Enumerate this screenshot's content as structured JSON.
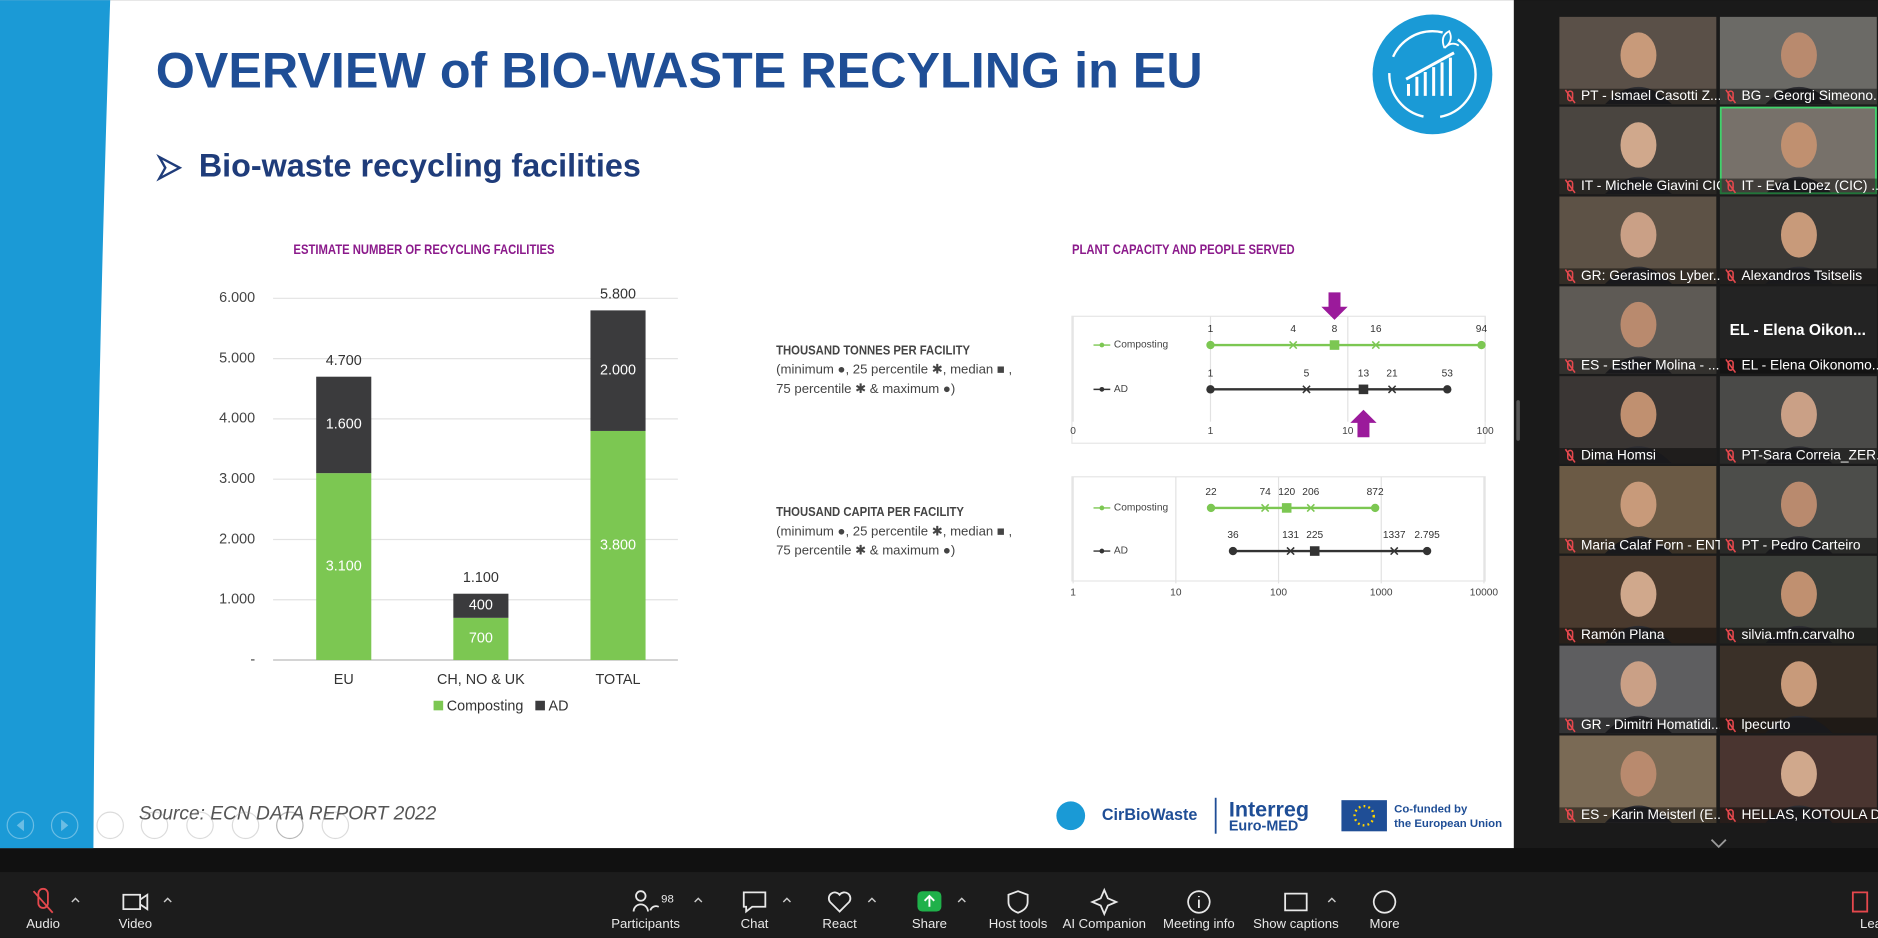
{
  "slide": {
    "title": "OVERVIEW of BIO-WASTE RECYLING in EU",
    "subtitle": "Bio-waste recycling facilities",
    "source": "Source: ECN DATA REPORT 2022",
    "logos": {
      "project": "CirBioWaste",
      "programme": "Interreg",
      "programme_region": "Euro-MED",
      "funding_line1": "Co-funded by",
      "funding_line2": "the European Union"
    },
    "charts": [
      {
        "type": "bar",
        "stacked": true,
        "title": "ESTIMATE NUMBER OF RECYCLING FACILITIES",
        "categories": [
          "EU",
          "CH, NO & UK",
          "TOTAL"
        ],
        "series": [
          {
            "name": "Composting",
            "color": "#7cc752",
            "values": [
              3100,
              700,
              3800
            ],
            "value_labels": [
              "3.100",
              "700",
              "3.800"
            ]
          },
          {
            "name": "AD",
            "color": "#3b3b3d",
            "values": [
              1600,
              400,
              2000
            ],
            "value_labels": [
              "1.600",
              "400",
              "2.000"
            ]
          }
        ],
        "totals": {
          "values": [
            4700,
            1100,
            5800
          ],
          "value_labels": [
            "4.700",
            "1.100",
            "5.800"
          ]
        },
        "ylim": [
          0,
          6000
        ],
        "yticks": [
          {
            "value": 0,
            "label": "-"
          },
          {
            "value": 1000,
            "label": "1.000"
          },
          {
            "value": 2000,
            "label": "2.000"
          },
          {
            "value": 3000,
            "label": "3.000"
          },
          {
            "value": 4000,
            "label": "4.000"
          },
          {
            "value": 5000,
            "label": "5.000"
          },
          {
            "value": 6000,
            "label": "6.000"
          }
        ],
        "grid": true,
        "legend": "bottom"
      },
      {
        "type": "dot-range",
        "title": "PLANT CAPACITY  AND PEOPLE SERVED",
        "panels": [
          {
            "label": "THOUSAND TONNES PER FACILITY",
            "description": [
              "(minimum ●, 25 percentile ✱, median ■ ,",
              "75 percentile ✱ & maximum ●)"
            ],
            "log_scale": true,
            "xlim": [
              0.1,
              100
            ],
            "xticks": [
              {
                "value": 0.1,
                "label": "0"
              },
              1,
              10,
              100
            ],
            "series": [
              {
                "name": "Composting",
                "color": "#7cc752",
                "values": [
                  1,
                  4,
                  8,
                  16,
                  94
                ]
              },
              {
                "name": "AD",
                "color": "#333333",
                "values": [
                  1,
                  5,
                  13,
                  21,
                  53
                ]
              }
            ]
          },
          {
            "label": "THOUSAND CAPITA PER FACILITY",
            "description": [
              "(minimum ●, 25 percentile ✱, median ■ ,",
              "75 percentile ✱ & maximum ●)"
            ],
            "log_scale": true,
            "xlim": [
              1,
              10000
            ],
            "xticks": [
              1,
              10,
              100,
              1000,
              10000
            ],
            "series": [
              {
                "name": "Composting",
                "color": "#7cc752",
                "values": [
                  22,
                  74,
                  120,
                  206,
                  872
                ]
              },
              {
                "name": "AD",
                "color": "#333333",
                "values": [
                  36,
                  131,
                  225,
                  1337,
                  2795
                ],
                "value_labels": [
                  "36",
                  "131",
                  "225",
                  "1337",
                  "2.795"
                ]
              }
            ]
          }
        ]
      }
    ]
  },
  "participants": [
    {
      "name": "PT - Ismael Casotti Z..."
    },
    {
      "name": "BG - Georgi Simeono..."
    },
    {
      "name": "IT - Michele Giavini CIC"
    },
    {
      "name": "IT - Eva Lopez (CIC) ..."
    },
    {
      "name": "GR: Gerasimos Lyber..."
    },
    {
      "name": "Alexandros Tsitselis"
    },
    {
      "name": "ES - Esther Molina - ..."
    },
    {
      "name": "EL - Elena Oikonomo...",
      "display_name": "EL - Elena Oikon..."
    },
    {
      "name": "Dima Homsi"
    },
    {
      "name": "PT-Sara Correia_ZER..."
    },
    {
      "name": "Maria Calaf Forn - ENT"
    },
    {
      "name": "PT - Pedro Carteiro"
    },
    {
      "name": "Ramón Plana"
    },
    {
      "name": "silvia.mfn.carvalho"
    },
    {
      "name": "GR - Dimitri Homatidi..."
    },
    {
      "name": "lpecurto"
    },
    {
      "name": "ES - Karin Meisterl (E..."
    },
    {
      "name": "HELLAS, KOTOULA DE..."
    }
  ],
  "toolbar": {
    "participants_count": 98,
    "items": [
      "Audio",
      "Video",
      "Participants",
      "Chat",
      "React",
      "Share",
      "Host tools",
      "AI Companion",
      "Meeting info",
      "Show captions",
      "More",
      "Leave"
    ]
  }
}
